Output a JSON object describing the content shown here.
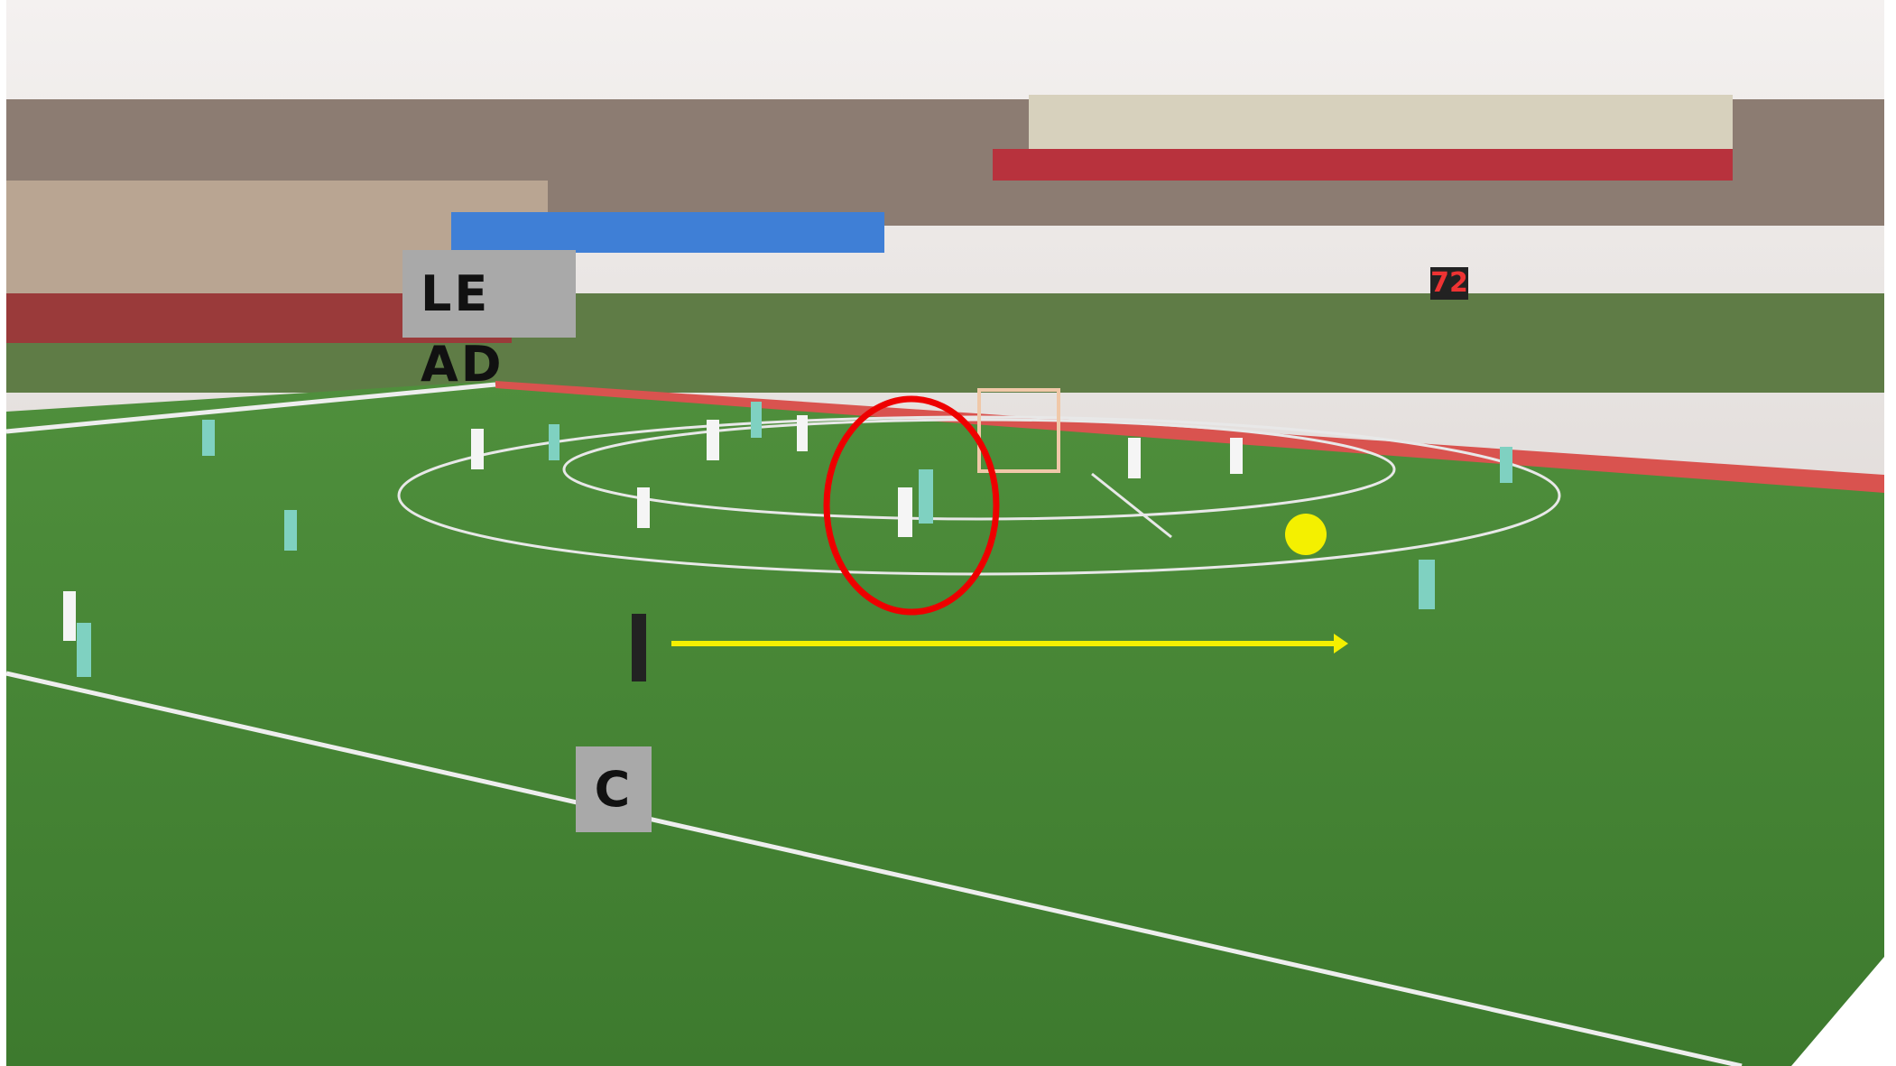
{
  "annotations": {
    "lead_label": "LEAD",
    "center_label": "C"
  },
  "scene": {
    "shot_clock": "72"
  }
}
